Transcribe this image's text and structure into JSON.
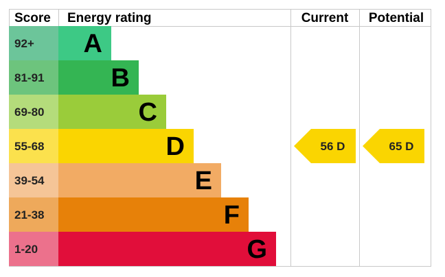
{
  "chart_data": {
    "type": "bar",
    "headers": {
      "score": "Score",
      "rating": "Energy rating",
      "current": "Current",
      "potential": "Potential"
    },
    "bands": [
      {
        "range": "92+",
        "letter": "A",
        "color": "#3dc985",
        "score_color": "#6cc59a"
      },
      {
        "range": "81-91",
        "letter": "B",
        "color": "#34b553",
        "score_color": "#6dc47d"
      },
      {
        "range": "69-80",
        "letter": "C",
        "color": "#9acc3a",
        "score_color": "#b4dc7b"
      },
      {
        "range": "55-68",
        "letter": "D",
        "color": "#fad501",
        "score_color": "#fbe14d"
      },
      {
        "range": "39-54",
        "letter": "E",
        "color": "#f2ab64",
        "score_color": "#f5c597"
      },
      {
        "range": "21-38",
        "letter": "F",
        "color": "#e78109",
        "score_color": "#eea95b"
      },
      {
        "range": "1-20",
        "letter": "G",
        "color": "#e10e3a",
        "score_color": "#ec718c"
      }
    ],
    "current": {
      "value": 56,
      "band": "D",
      "label": "56  D"
    },
    "potential": {
      "value": 65,
      "band": "D",
      "label": "65  D"
    },
    "arrow_color": "#fad501",
    "grid_color": "#c8c8c8"
  }
}
